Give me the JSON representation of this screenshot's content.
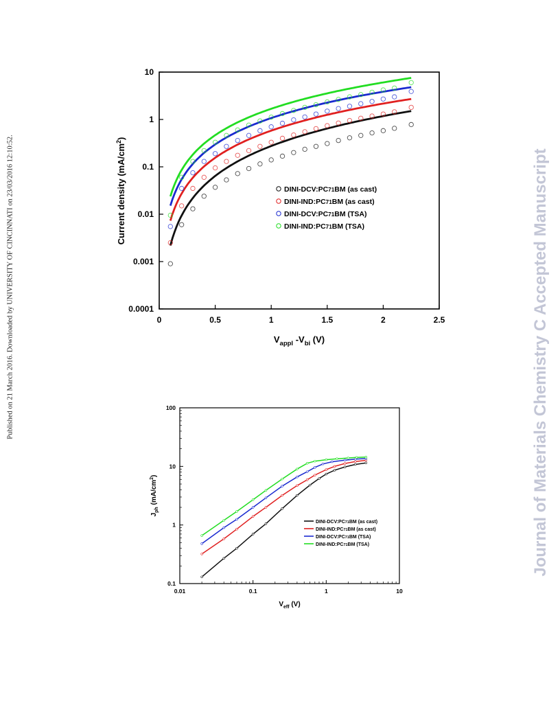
{
  "page": {
    "side_note": "Published on 21 March 2016. Downloaded by UNIVERSITY OF CINCINNATI on 23/03/2016 12:10:52.",
    "watermark": "Journal of Materials Chemistry C Accepted Manuscript"
  },
  "chart_data": [
    {
      "type": "scatter",
      "xlabel": "V_appl - V_bi (V)",
      "xlabel_main": "V",
      "xlabel_sub1": "appl",
      "xlabel_mid": " -V",
      "xlabel_sub2": "bi",
      "xlabel_unit": " (V)",
      "ylabel": "Current density (mA/cm²)",
      "ylabel_text": "Current density (mA/cm",
      "ylabel_sup": "2",
      "ylabel_end": ")",
      "xlim": [
        0,
        2.5
      ],
      "ylim": [
        0.0001,
        10
      ],
      "yscale": "log",
      "grid": false,
      "legend_position": "center-right",
      "x_ticks": [
        "0",
        "0.5",
        "1",
        "1.5",
        "2",
        "2.5"
      ],
      "y_ticks": [
        "10",
        "1",
        "0.1",
        "0.01",
        "0.001",
        "0.0001"
      ],
      "series": [
        {
          "name": "DINI-DCV:PC71BM (as cast)",
          "legend_a": "DINI-DCV:PC",
          "legend_sub": "71",
          "legend_b": "BM (as cast)",
          "color": "#111111",
          "x": [
            0.1,
            0.2,
            0.3,
            0.4,
            0.5,
            0.6,
            0.7,
            0.8,
            0.9,
            1.0,
            1.1,
            1.2,
            1.3,
            1.4,
            1.5,
            1.6,
            1.7,
            1.8,
            1.9,
            2.0,
            2.1,
            2.25
          ],
          "y": [
            0.0009,
            0.006,
            0.013,
            0.024,
            0.037,
            0.053,
            0.072,
            0.092,
            0.115,
            0.14,
            0.168,
            0.2,
            0.235,
            0.27,
            0.31,
            0.36,
            0.41,
            0.46,
            0.52,
            0.58,
            0.65,
            0.78
          ],
          "fit_a": 0.275,
          "fit_n": 2.1
        },
        {
          "name": "DINI-IND:PC71BM (as cast)",
          "legend_a": "DINI-IND:PC",
          "legend_sub": "71",
          "legend_b": "BM (as cast)",
          "color": "#e02020",
          "x": [
            0.1,
            0.2,
            0.3,
            0.4,
            0.5,
            0.6,
            0.7,
            0.8,
            0.9,
            1.0,
            1.1,
            1.2,
            1.3,
            1.4,
            1.5,
            1.6,
            1.7,
            1.8,
            1.9,
            2.0,
            2.1,
            2.25
          ],
          "y": [
            0.0025,
            0.015,
            0.035,
            0.06,
            0.095,
            0.13,
            0.175,
            0.22,
            0.27,
            0.33,
            0.4,
            0.47,
            0.55,
            0.64,
            0.74,
            0.84,
            0.95,
            1.06,
            1.18,
            1.3,
            1.45,
            1.8
          ],
          "fit_a": 0.58,
          "fit_n": 1.9
        },
        {
          "name": "DINI-DCV:PC71BM (TSA)",
          "legend_a": "DINI-DCV:PC",
          "legend_sub": "71",
          "legend_b": "BM (TSA)",
          "color": "#1a2ad0",
          "x": [
            0.1,
            0.2,
            0.3,
            0.4,
            0.5,
            0.6,
            0.7,
            0.8,
            0.9,
            1.0,
            1.1,
            1.2,
            1.3,
            1.4,
            1.5,
            1.6,
            1.7,
            1.8,
            1.9,
            2.0,
            2.1,
            2.25
          ],
          "y": [
            0.0055,
            0.035,
            0.075,
            0.13,
            0.19,
            0.27,
            0.36,
            0.46,
            0.58,
            0.7,
            0.83,
            0.98,
            1.13,
            1.3,
            1.5,
            1.7,
            1.9,
            2.15,
            2.4,
            2.7,
            3.0,
            3.9
          ],
          "fit_a": 1.07,
          "fit_n": 1.85
        },
        {
          "name": "DINI-IND:PC71BM (TSA)",
          "legend_a": "DINI-IND:PC",
          "legend_sub": "71",
          "legend_b": "BM (TSA)",
          "color": "#22dd22",
          "x": [
            0.1,
            0.2,
            0.3,
            0.4,
            0.5,
            0.6,
            0.7,
            0.8,
            0.9,
            1.0,
            1.1,
            1.2,
            1.3,
            1.4,
            1.5,
            1.6,
            1.7,
            1.8,
            1.9,
            2.0,
            2.1,
            2.25
          ],
          "y": [
            0.0095,
            0.06,
            0.13,
            0.22,
            0.33,
            0.46,
            0.6,
            0.76,
            0.93,
            1.12,
            1.33,
            1.55,
            1.8,
            2.05,
            2.35,
            2.65,
            3.0,
            3.35,
            3.75,
            4.2,
            4.6,
            6.0
          ],
          "fit_a": 1.68,
          "fit_n": 1.85
        }
      ]
    },
    {
      "type": "line",
      "xlabel": "V_eff (V)",
      "xlabel_main": "V",
      "xlabel_sub": "eff",
      "xlabel_unit": " (V)",
      "ylabel": "J_ph (mA/cm²)",
      "ylabel_main": "J",
      "ylabel_sub": "ph",
      "ylabel_text": " (mA/cm",
      "ylabel_sup": "2",
      "ylabel_end": ")",
      "xlim": [
        0.01,
        10
      ],
      "ylim": [
        0.1,
        100
      ],
      "xscale": "log",
      "yscale": "log",
      "grid": false,
      "legend_position": "center-right",
      "x_ticks": [
        "0.01",
        "0.1",
        "1",
        "10"
      ],
      "y_ticks": [
        "100",
        "10",
        "1",
        "0.1"
      ],
      "series": [
        {
          "name": "DINI-DCV:PC71BM (as cast)",
          "legend_a": "DINI-DCV:PC",
          "legend_sub": "71",
          "legend_b": "BM (as cast)",
          "color": "#111111",
          "x": [
            0.02,
            0.04,
            0.06,
            0.1,
            0.15,
            0.25,
            0.4,
            0.6,
            0.8,
            1.0,
            1.3,
            1.8,
            2.5,
            3.5
          ],
          "y": [
            0.13,
            0.27,
            0.4,
            0.7,
            1.05,
            1.9,
            3.2,
            4.8,
            6.2,
            7.4,
            8.6,
            9.8,
            10.8,
            11.5
          ]
        },
        {
          "name": "DINI-IND:PC71BM (as cast)",
          "legend_a": "DINI-IND:PC",
          "legend_sub": "71",
          "legend_b": "BM (as cast)",
          "color": "#e02020",
          "x": [
            0.02,
            0.04,
            0.06,
            0.1,
            0.15,
            0.25,
            0.4,
            0.55,
            0.7,
            1.0,
            1.3,
            1.8,
            2.5,
            3.5
          ],
          "y": [
            0.32,
            0.58,
            0.85,
            1.4,
            2.0,
            3.2,
            4.7,
            5.9,
            7.1,
            8.8,
            10.0,
            11.2,
            12.1,
            12.7
          ]
        },
        {
          "name": "DINI-DCV:PC71BM (TSA)",
          "legend_a": "DINI-DCV:PC",
          "legend_sub": "71",
          "legend_b": "BM (TSA)",
          "color": "#1a2ad0",
          "x": [
            0.02,
            0.04,
            0.06,
            0.1,
            0.15,
            0.25,
            0.4,
            0.55,
            0.7,
            0.9,
            1.2,
            1.8,
            2.5,
            3.5
          ],
          "y": [
            0.48,
            0.9,
            1.25,
            2.0,
            2.9,
            4.6,
            6.6,
            8.1,
            9.6,
            11.0,
            12.0,
            12.8,
            13.3,
            13.6
          ]
        },
        {
          "name": "DINI-IND:PC71BM (TSA)",
          "legend_a": "DINI-IND:PC",
          "legend_sub": "71",
          "legend_b": "BM (TSA)",
          "color": "#22dd22",
          "x": [
            0.02,
            0.04,
            0.06,
            0.1,
            0.15,
            0.25,
            0.4,
            0.55,
            0.7,
            1.0,
            1.4,
            2.0,
            2.6,
            3.5
          ],
          "y": [
            0.66,
            1.2,
            1.7,
            2.7,
            3.9,
            6.1,
            9.0,
            11.3,
            12.3,
            13.0,
            13.5,
            13.9,
            14.2,
            14.4
          ]
        }
      ]
    }
  ]
}
